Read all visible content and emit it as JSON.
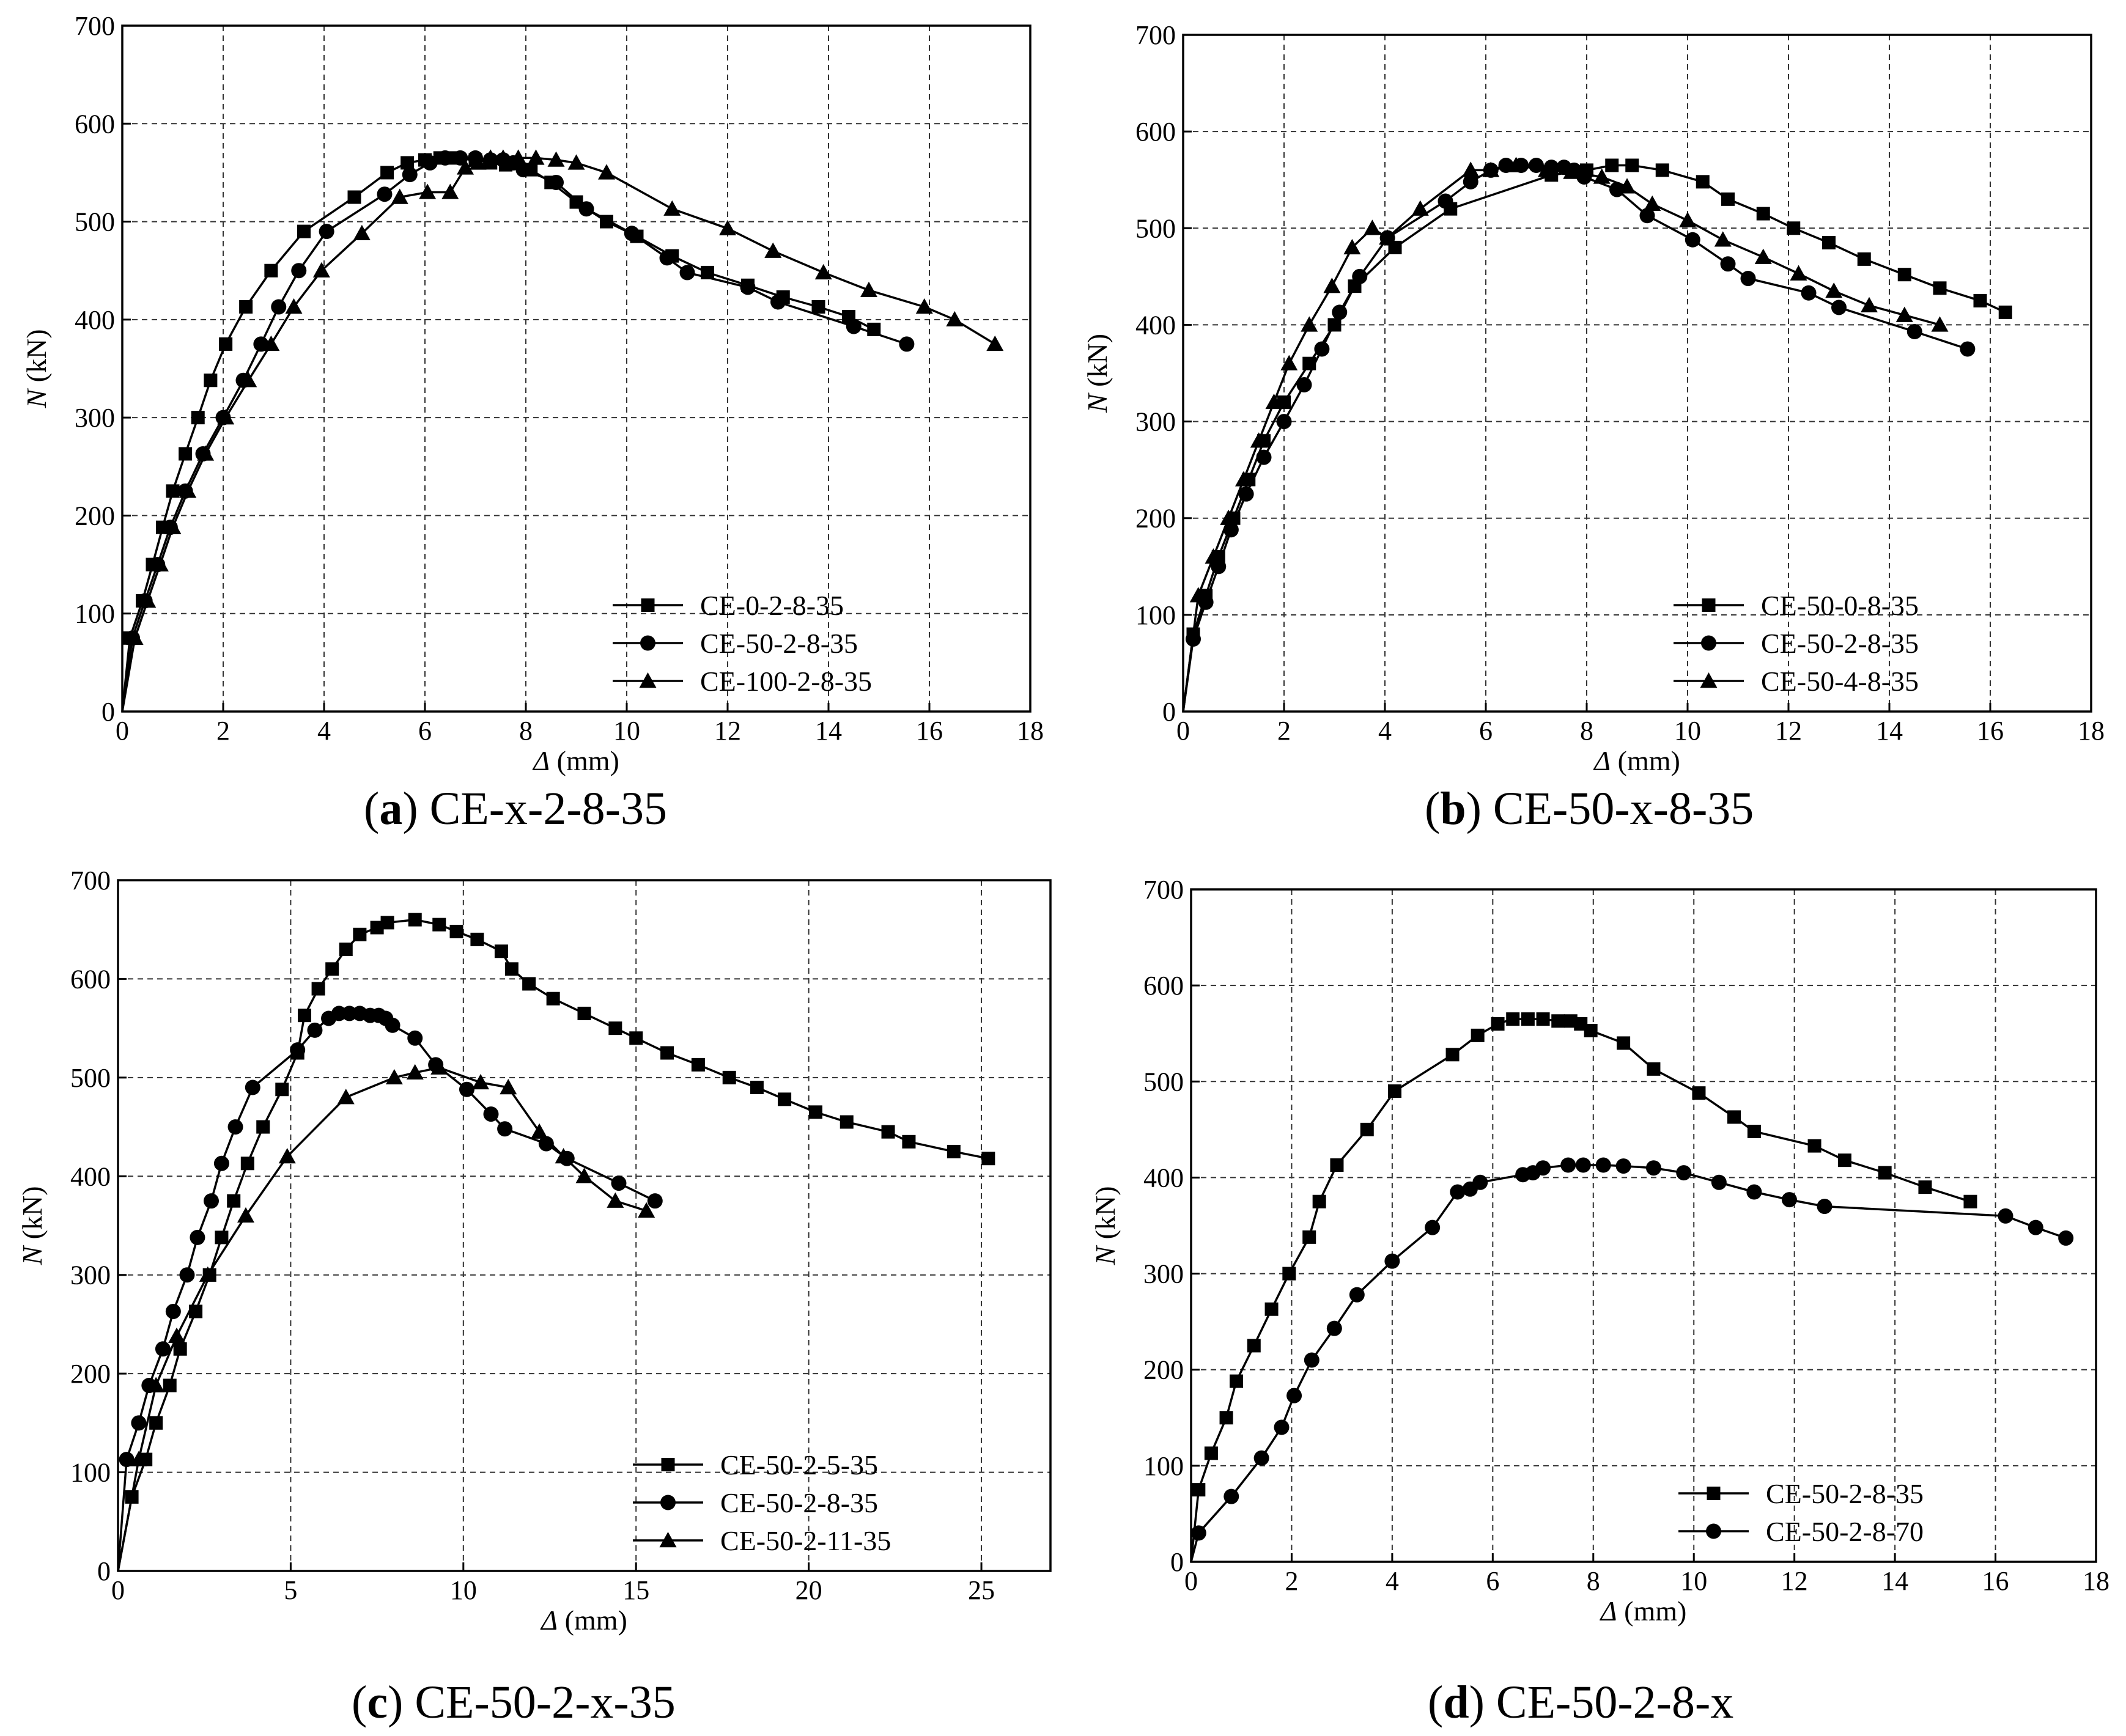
{
  "figure": {
    "colors": {
      "line": "#000000",
      "grid": "#333333",
      "background": "#ffffff"
    }
  },
  "chart_data": [
    {
      "type": "line",
      "panel": "a",
      "caption_letter": "a",
      "caption_rest": " CE-x-2-8-35",
      "xlabel_symbol": "Δ",
      "xlabel_unit": " (mm)",
      "ylabel_symbol": "N",
      "ylabel_unit": " (kN)",
      "xlim": [
        0,
        18
      ],
      "ylim": [
        0,
        700
      ],
      "xticks": [
        0,
        2,
        4,
        6,
        8,
        10,
        12,
        14,
        16,
        18
      ],
      "yticks": [
        0,
        100,
        200,
        300,
        400,
        500,
        600,
        700
      ],
      "grid": true,
      "legend_position": "bottom-right",
      "series": [
        {
          "name": "CE-0-2-8-35",
          "marker": "square",
          "x": [
            0,
            0.15,
            0.4,
            0.6,
            0.8,
            1.0,
            1.25,
            1.5,
            1.75,
            2.05,
            2.45,
            2.95,
            3.6,
            4.6,
            5.25,
            5.65,
            6.0,
            6.3,
            6.6,
            7.0,
            7.3,
            7.6,
            8.1,
            8.5,
            9.0,
            9.6,
            10.2,
            10.9,
            11.6,
            12.4,
            13.1,
            13.8,
            14.4,
            14.9
          ],
          "y": [
            0,
            75,
            113,
            150,
            188,
            225,
            263,
            300,
            338,
            375,
            413,
            450,
            490,
            525,
            550,
            560,
            563,
            565,
            565,
            563,
            560,
            558,
            553,
            540,
            520,
            500,
            485,
            465,
            448,
            435,
            423,
            413,
            403,
            390
          ]
        },
        {
          "name": "CE-50-2-8-35",
          "marker": "circle",
          "x": [
            0,
            0.2,
            0.45,
            0.7,
            0.95,
            1.25,
            1.6,
            2.0,
            2.4,
            2.75,
            3.1,
            3.5,
            4.05,
            5.2,
            5.7,
            6.1,
            6.4,
            6.7,
            7.0,
            7.3,
            7.55,
            7.75,
            7.95,
            8.6,
            9.2,
            10.1,
            10.8,
            11.2,
            12.4,
            13.0,
            14.5,
            15.55
          ],
          "y": [
            0,
            75,
            113,
            150,
            188,
            225,
            263,
            300,
            338,
            375,
            413,
            450,
            490,
            528,
            548,
            560,
            565,
            565,
            565,
            563,
            563,
            560,
            553,
            540,
            513,
            488,
            463,
            448,
            433,
            418,
            393,
            375
          ]
        },
        {
          "name": "CE-100-2-8-35",
          "marker": "triangle",
          "x": [
            0,
            0.25,
            0.5,
            0.75,
            1.0,
            1.3,
            1.65,
            2.05,
            2.5,
            2.95,
            3.4,
            3.95,
            4.75,
            5.5,
            6.05,
            6.5,
            6.8,
            7.05,
            7.3,
            7.55,
            7.85,
            8.2,
            8.6,
            9.0,
            9.6,
            10.9,
            12.0,
            12.9,
            13.9,
            14.8,
            15.9,
            16.5,
            17.3
          ],
          "y": [
            0,
            75,
            113,
            150,
            188,
            225,
            263,
            300,
            338,
            375,
            413,
            450,
            488,
            525,
            530,
            530,
            555,
            560,
            565,
            565,
            565,
            565,
            563,
            560,
            550,
            513,
            493,
            470,
            448,
            430,
            413,
            400,
            375
          ]
        }
      ]
    },
    {
      "type": "line",
      "panel": "b",
      "caption_letter": "b",
      "caption_rest": " CE-50-x-8-35",
      "xlabel_symbol": "Δ",
      "xlabel_unit": " (mm)",
      "ylabel_symbol": "N",
      "ylabel_unit": " (kN)",
      "xlim": [
        0,
        18
      ],
      "ylim": [
        0,
        700
      ],
      "xticks": [
        0,
        2,
        4,
        6,
        8,
        10,
        12,
        14,
        16,
        18
      ],
      "yticks": [
        0,
        100,
        200,
        300,
        400,
        500,
        600,
        700
      ],
      "grid": true,
      "legend_position": "bottom-right",
      "series": [
        {
          "name": "CE-50-0-8-35",
          "marker": "square",
          "x": [
            0,
            0.2,
            0.45,
            0.7,
            1.0,
            1.3,
            1.6,
            2.0,
            2.5,
            3.0,
            3.4,
            4.2,
            5.3,
            7.3,
            8.0,
            8.5,
            8.9,
            9.5,
            10.3,
            10.8,
            11.5,
            12.1,
            12.8,
            13.5,
            14.3,
            15.0,
            15.8,
            16.3
          ],
          "y": [
            0,
            80,
            120,
            160,
            200,
            240,
            280,
            320,
            360,
            400,
            440,
            480,
            520,
            555,
            560,
            565,
            565,
            560,
            548,
            530,
            515,
            500,
            485,
            468,
            452,
            438,
            425,
            413
          ]
        },
        {
          "name": "CE-50-2-8-35",
          "marker": "circle",
          "x": [
            0,
            0.2,
            0.45,
            0.7,
            0.95,
            1.25,
            1.6,
            2.0,
            2.4,
            2.75,
            3.1,
            3.5,
            4.05,
            5.2,
            5.7,
            6.1,
            6.4,
            6.7,
            7.0,
            7.3,
            7.55,
            7.75,
            7.95,
            8.6,
            9.2,
            10.1,
            10.8,
            11.2,
            12.4,
            13.0,
            14.5,
            15.55
          ],
          "y": [
            0,
            75,
            113,
            150,
            188,
            225,
            263,
            300,
            338,
            375,
            413,
            450,
            490,
            528,
            548,
            560,
            565,
            565,
            565,
            563,
            563,
            560,
            553,
            540,
            513,
            488,
            463,
            448,
            433,
            418,
            393,
            375
          ]
        },
        {
          "name": "CE-50-4-8-35",
          "marker": "triangle",
          "x": [
            0,
            0.3,
            0.6,
            0.9,
            1.2,
            1.5,
            1.8,
            2.1,
            2.5,
            2.95,
            3.35,
            3.75,
            4.05,
            4.7,
            5.7,
            6.1,
            6.6,
            7.2,
            7.7,
            8.3,
            8.8,
            9.3,
            10.0,
            10.7,
            11.5,
            12.2,
            12.9,
            13.6,
            14.3,
            15.0
          ],
          "y": [
            0,
            120,
            160,
            200,
            240,
            280,
            320,
            360,
            400,
            440,
            480,
            500,
            490,
            520,
            560,
            560,
            565,
            560,
            558,
            553,
            543,
            525,
            508,
            488,
            470,
            453,
            435,
            420,
            410,
            400
          ]
        }
      ]
    },
    {
      "type": "line",
      "panel": "c",
      "caption_letter": "c",
      "caption_rest": " CE-50-2-x-35",
      "xlabel_symbol": "Δ",
      "xlabel_unit": " (mm)",
      "ylabel_symbol": "N",
      "ylabel_unit": " (kN)",
      "xlim": [
        0,
        27
      ],
      "ylim": [
        0,
        700
      ],
      "xticks": [
        0,
        5,
        10,
        15,
        20,
        25
      ],
      "yticks": [
        0,
        100,
        200,
        300,
        400,
        500,
        600,
        700
      ],
      "grid": true,
      "legend_position": "bottom-right",
      "series": [
        {
          "name": "CE-50-2-5-35",
          "marker": "square",
          "x": [
            0,
            0.4,
            0.8,
            1.1,
            1.5,
            1.8,
            2.25,
            2.65,
            3.0,
            3.35,
            3.75,
            4.2,
            4.75,
            5.2,
            5.4,
            5.8,
            6.2,
            6.6,
            7.0,
            7.5,
            7.8,
            8.6,
            9.3,
            9.8,
            10.4,
            11.1,
            11.4,
            11.9,
            12.6,
            13.5,
            14.4,
            15.0,
            15.9,
            16.8,
            17.7,
            18.5,
            19.3,
            20.2,
            21.1,
            22.3,
            22.9,
            24.2,
            25.2
          ],
          "y": [
            0,
            75,
            113,
            150,
            188,
            225,
            263,
            300,
            338,
            375,
            413,
            450,
            488,
            525,
            563,
            590,
            610,
            630,
            645,
            652,
            657,
            660,
            655,
            648,
            640,
            628,
            610,
            595,
            580,
            565,
            550,
            540,
            525,
            513,
            500,
            490,
            478,
            465,
            455,
            445,
            435,
            425,
            418
          ]
        },
        {
          "name": "CE-50-2-8-35",
          "marker": "circle",
          "x": [
            0,
            0.25,
            0.6,
            0.9,
            1.3,
            1.6,
            2.0,
            2.3,
            2.7,
            3.0,
            3.4,
            3.9,
            5.2,
            5.7,
            6.1,
            6.4,
            6.7,
            7.0,
            7.3,
            7.55,
            7.75,
            7.95,
            8.6,
            9.2,
            10.1,
            10.8,
            11.2,
            12.4,
            13.0,
            14.5,
            15.55
          ],
          "y": [
            0,
            113,
            150,
            188,
            225,
            263,
            300,
            338,
            375,
            413,
            450,
            490,
            528,
            548,
            560,
            565,
            565,
            565,
            563,
            563,
            560,
            553,
            540,
            513,
            488,
            463,
            448,
            433,
            418,
            393,
            375
          ]
        },
        {
          "name": "CE-50-2-11-35",
          "marker": "triangle",
          "x": [
            0,
            0.6,
            1.1,
            1.7,
            2.6,
            3.7,
            4.9,
            6.6,
            8.0,
            8.6,
            9.3,
            10.5,
            11.3,
            12.2,
            12.9,
            13.5,
            14.4,
            15.3
          ],
          "y": [
            0,
            113,
            188,
            238,
            300,
            360,
            420,
            480,
            500,
            505,
            510,
            495,
            490,
            445,
            420,
            400,
            375,
            365
          ]
        }
      ]
    },
    {
      "type": "line",
      "panel": "d",
      "caption_letter": "d",
      "caption_rest": " CE-50-2-8-x",
      "xlabel_symbol": "Δ",
      "xlabel_unit": " (mm)",
      "ylabel_symbol": "N",
      "ylabel_unit": " (kN)",
      "xlim": [
        0,
        18
      ],
      "ylim": [
        0,
        700
      ],
      "xticks": [
        0,
        2,
        4,
        6,
        8,
        10,
        12,
        14,
        16,
        18
      ],
      "yticks": [
        0,
        100,
        200,
        300,
        400,
        500,
        600,
        700
      ],
      "grid": true,
      "legend_position": "bottom-right",
      "series": [
        {
          "name": "CE-50-2-8-35",
          "marker": "square",
          "x": [
            0,
            0.15,
            0.4,
            0.7,
            0.9,
            1.25,
            1.6,
            1.95,
            2.35,
            2.55,
            2.9,
            3.5,
            4.05,
            5.2,
            5.7,
            6.1,
            6.4,
            6.7,
            7.0,
            7.3,
            7.55,
            7.75,
            7.95,
            8.6,
            9.2,
            10.1,
            10.8,
            11.2,
            12.4,
            13.0,
            13.8,
            14.6,
            15.5
          ],
          "y": [
            0,
            75,
            113,
            150,
            188,
            225,
            263,
            300,
            338,
            375,
            413,
            450,
            490,
            528,
            548,
            560,
            565,
            565,
            565,
            563,
            563,
            560,
            553,
            540,
            513,
            488,
            463,
            448,
            433,
            418,
            405,
            390,
            375
          ]
        },
        {
          "name": "CE-50-2-8-70",
          "marker": "circle",
          "x": [
            0,
            0.15,
            0.8,
            1.4,
            1.8,
            2.05,
            2.4,
            2.85,
            3.3,
            4.0,
            4.8,
            5.3,
            5.55,
            5.75,
            6.6,
            6.8,
            7.0,
            7.5,
            7.8,
            8.2,
            8.6,
            9.2,
            9.8,
            10.5,
            11.2,
            11.9,
            12.6,
            16.2,
            16.8,
            17.4
          ],
          "y": [
            0,
            30,
            68,
            108,
            140,
            173,
            210,
            243,
            278,
            313,
            348,
            385,
            388,
            395,
            403,
            405,
            410,
            413,
            413,
            413,
            412,
            410,
            405,
            395,
            385,
            377,
            370,
            360,
            348,
            337
          ]
        }
      ]
    }
  ]
}
